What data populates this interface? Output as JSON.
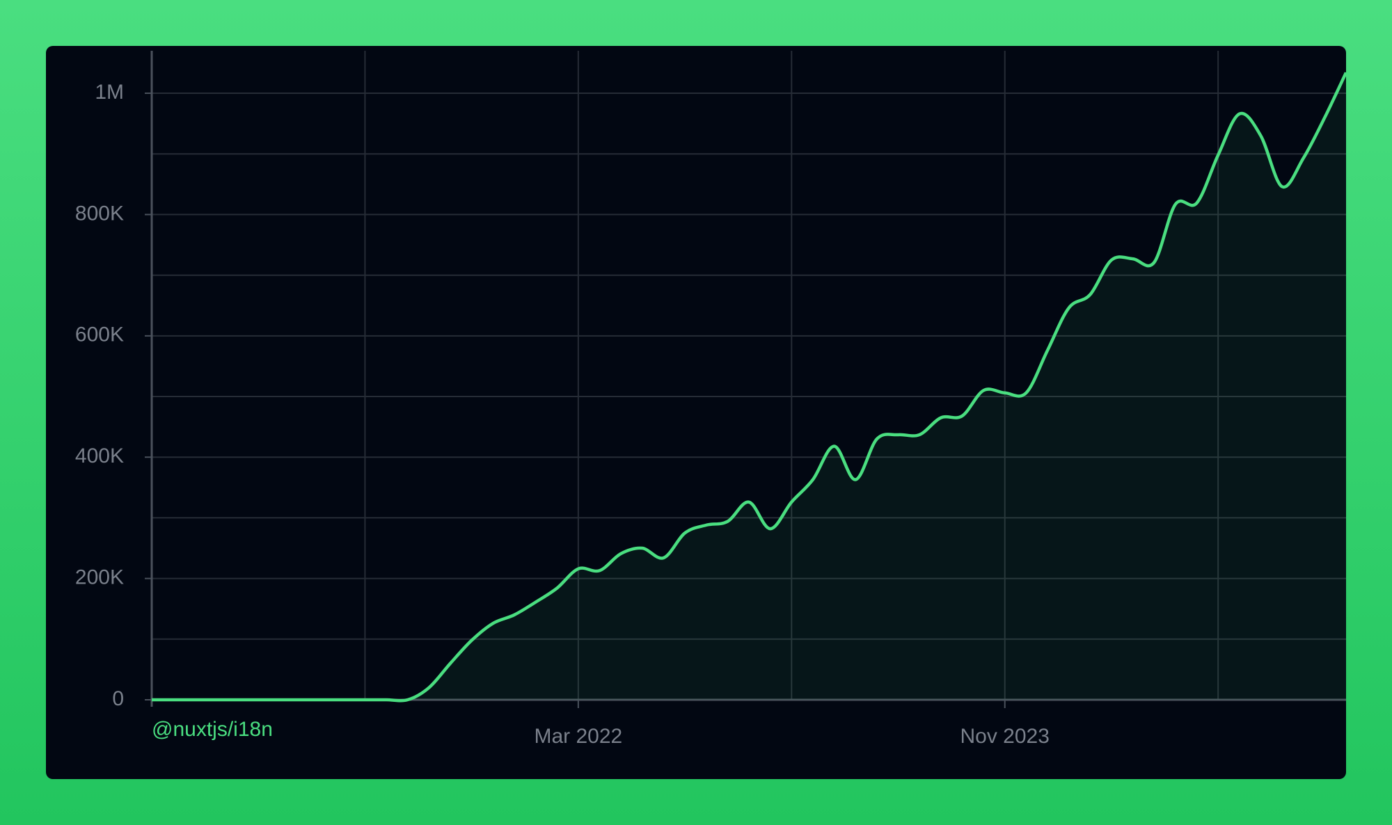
{
  "chart_data": {
    "type": "line",
    "categories": [
      null,
      null,
      null,
      null,
      null,
      null,
      null,
      null,
      null,
      null,
      null,
      null,
      null,
      null,
      null,
      null,
      null,
      null,
      null,
      null,
      "Mar 2022",
      null,
      null,
      null,
      null,
      null,
      null,
      null,
      null,
      null,
      null,
      null,
      null,
      null,
      null,
      null,
      null,
      null,
      null,
      null,
      "Nov 2023",
      null,
      null,
      null,
      null,
      null,
      null,
      null,
      null,
      null,
      null,
      null,
      null,
      null,
      null,
      null,
      null
    ],
    "series": [
      {
        "name": "@nuxtjs/i18n",
        "color": "#4ade80",
        "values": [
          0,
          0,
          0,
          0,
          0,
          0,
          0,
          0,
          0,
          0,
          0,
          0,
          0,
          20000,
          60000,
          98000,
          126000,
          140000,
          161000,
          184000,
          216000,
          213000,
          241000,
          250000,
          234000,
          275000,
          288000,
          294000,
          326000,
          282000,
          326000,
          363000,
          418000,
          363000,
          430000,
          437000,
          437000,
          465000,
          468000,
          510000,
          506000,
          506000,
          576000,
          646000,
          668000,
          725000,
          727000,
          721000,
          817000,
          819000,
          898000,
          966000,
          930000,
          846000,
          893000,
          960000,
          1034000
        ]
      }
    ],
    "ylim": [
      0,
      1070000
    ],
    "yticks": [
      0,
      {
        "value": 200000,
        "label": "200K"
      },
      {
        "value": 400000,
        "label": "400K"
      },
      {
        "value": 600000,
        "label": "600K"
      },
      {
        "value": 800000,
        "label": "800K"
      },
      {
        "value": 1000000,
        "label": "1M"
      }
    ],
    "grid": true,
    "area": true
  }
}
